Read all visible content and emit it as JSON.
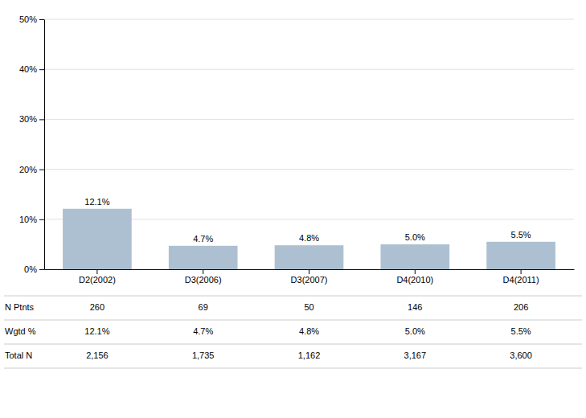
{
  "chart_data": {
    "type": "bar",
    "categories": [
      "D2(2002)",
      "D3(2006)",
      "D3(2007)",
      "D4(2010)",
      "D4(2011)"
    ],
    "values": [
      12.1,
      4.7,
      4.8,
      5.0,
      5.5
    ],
    "value_labels": [
      "12.1%",
      "4.7%",
      "4.8%",
      "5.0%",
      "5.5%"
    ],
    "data_labels": true,
    "color": "#adc0d2",
    "ylim": [
      0,
      50
    ],
    "yticks": [
      {
        "value": 0,
        "label": "0%"
      },
      {
        "value": 10,
        "label": "10%"
      },
      {
        "value": 20,
        "label": "20%"
      },
      {
        "value": 30,
        "label": "30%"
      },
      {
        "value": 40,
        "label": "40%"
      },
      {
        "value": 50,
        "label": "50%"
      }
    ],
    "grid": true,
    "table": [
      {
        "name": "N Ptnts",
        "values": [
          260,
          69,
          50,
          146,
          206
        ]
      },
      {
        "name": "Wgtd %",
        "values": [
          12.1,
          4.7,
          4.8,
          5.0,
          5.5
        ],
        "value_labels": [
          "12.1%",
          "4.7%",
          "4.8%",
          "5.0%",
          "5.5%"
        ]
      },
      {
        "name": "Total N",
        "values": [
          2156,
          1735,
          1162,
          3167,
          3600
        ],
        "value_labels": [
          "2,156",
          "1,735",
          "1,162",
          "3,167",
          "3,600"
        ]
      }
    ]
  }
}
